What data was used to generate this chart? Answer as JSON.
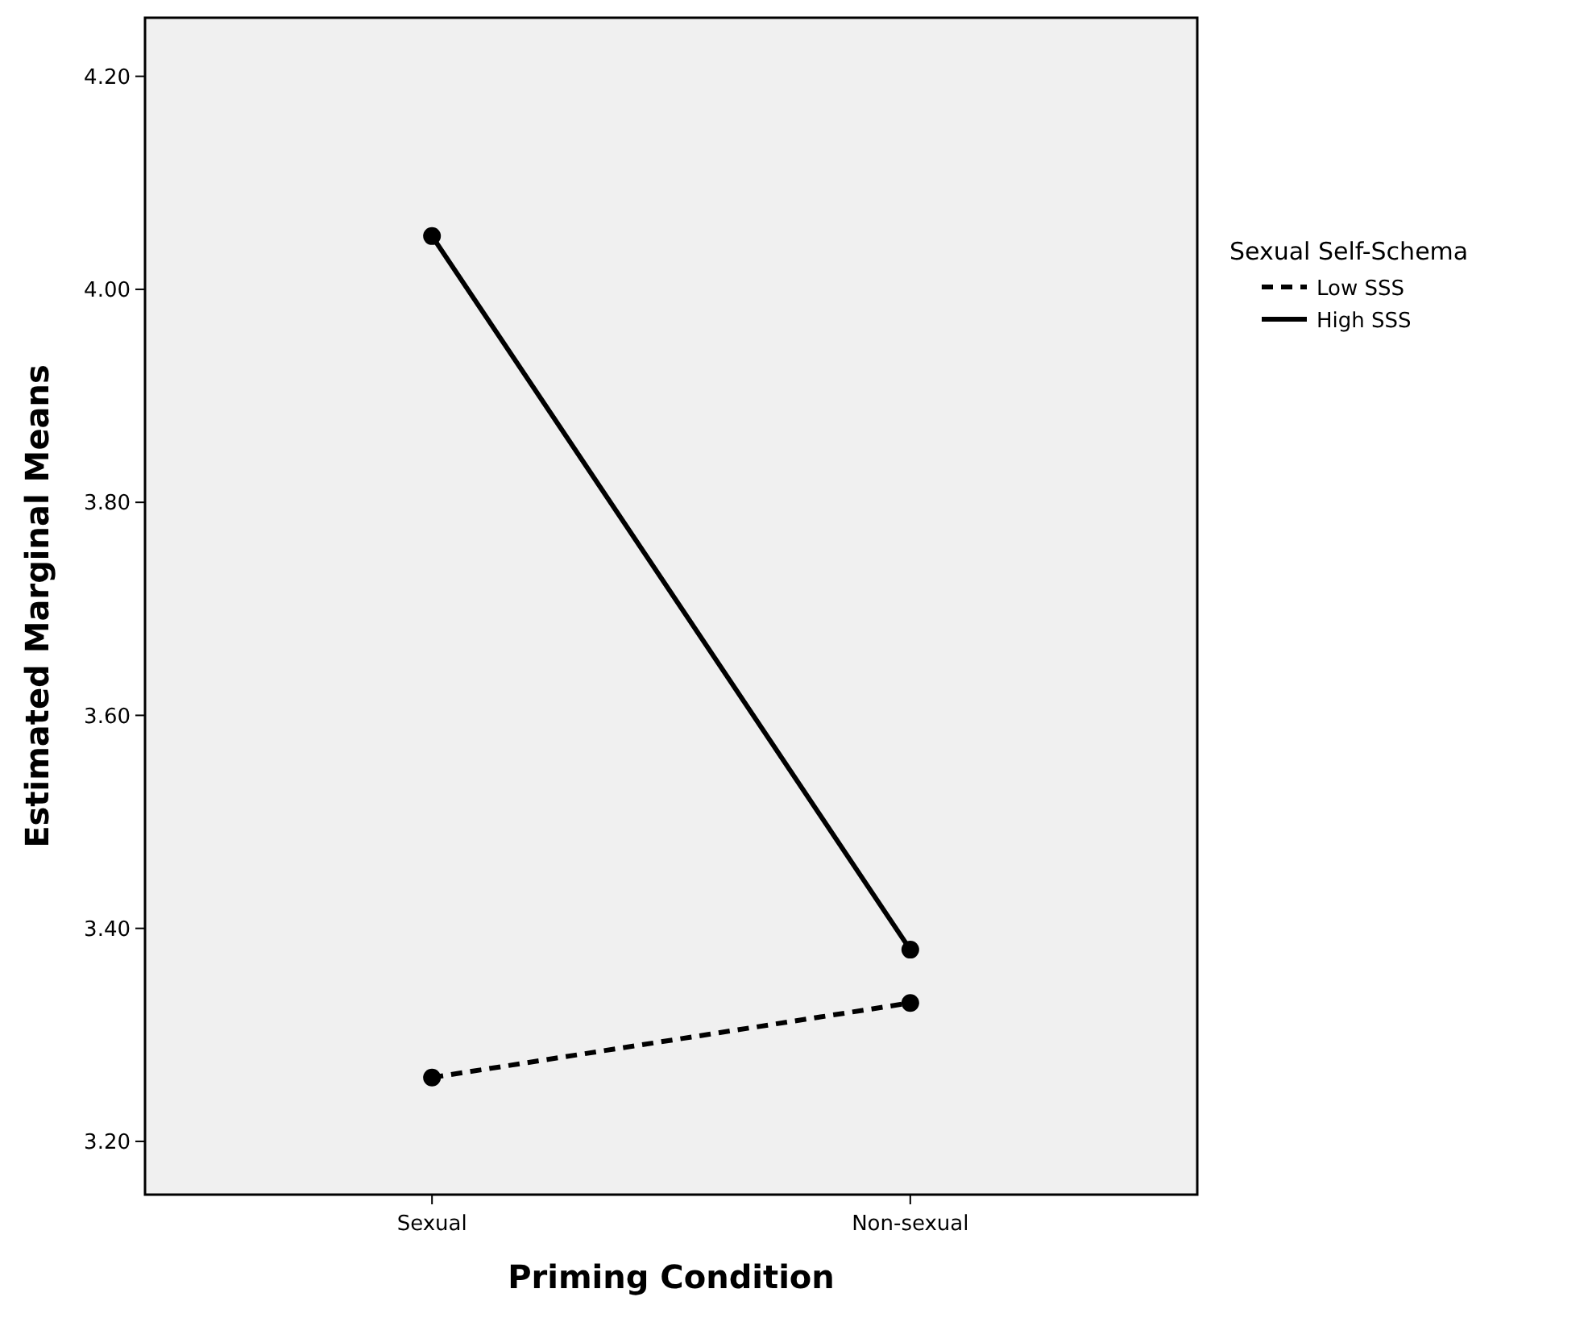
{
  "chart_data": {
    "type": "line",
    "xlabel": "Priming Condition",
    "ylabel": "Estimated Marginal Means",
    "legend_title": "Sexual Self-Schema",
    "categories": [
      "Sexual",
      "Non-sexual"
    ],
    "series": [
      {
        "name": "Low SSS",
        "color": "#000000",
        "values": [
          3.26,
          3.33
        ],
        "line_style": "dashed"
      },
      {
        "name": "High SSS",
        "color": "#000000",
        "values": [
          4.05,
          3.38
        ],
        "line_style": "solid"
      }
    ],
    "ylim": [
      3.15,
      4.255
    ],
    "yticks": [
      {
        "value": 3.2,
        "label": "3.20"
      },
      {
        "value": 3.4,
        "label": "3.40"
      },
      {
        "value": 3.6,
        "label": "3.60"
      },
      {
        "value": 3.8,
        "label": "3.80"
      },
      {
        "value": 4.0,
        "label": "4.00"
      },
      {
        "value": 4.2,
        "label": "4.20"
      }
    ],
    "marker": "circle",
    "legend": "right",
    "grid": false
  }
}
